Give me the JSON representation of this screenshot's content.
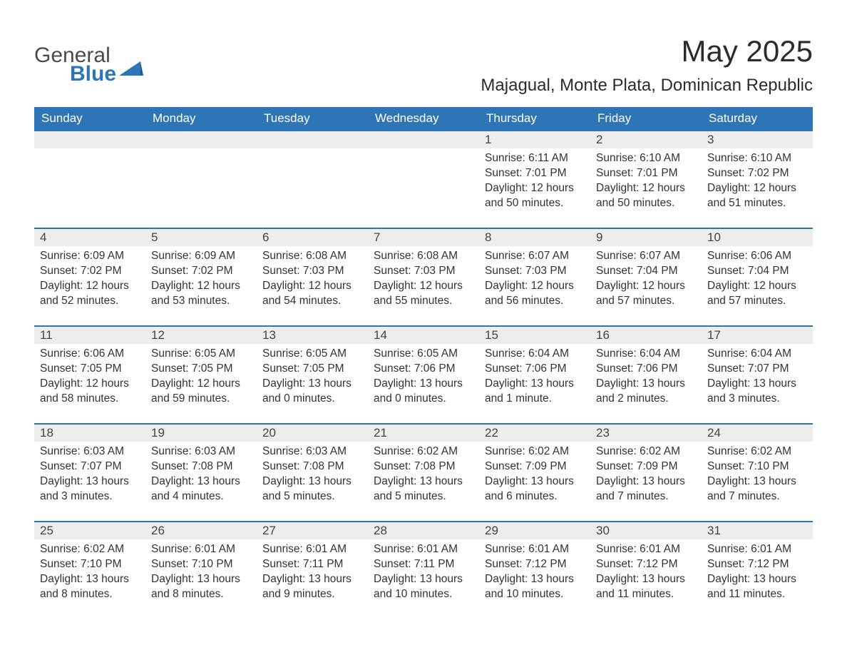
{
  "logo": {
    "word1": "General",
    "word2": "Blue",
    "icon_color": "#2e75b6"
  },
  "title": "May 2025",
  "location": "Majagual, Monte Plata, Dominican Republic",
  "header_bg": "#2e75b6",
  "header_fg": "#ffffff",
  "daynum_bg": "#ededed",
  "rule_color": "#2e75b6",
  "text_color": "#333333",
  "weekdays": [
    "Sunday",
    "Monday",
    "Tuesday",
    "Wednesday",
    "Thursday",
    "Friday",
    "Saturday"
  ],
  "days": [
    null,
    null,
    null,
    null,
    {
      "n": "1",
      "sr": "6:11 AM",
      "ss": "7:01 PM",
      "dl": "12 hours and 50 minutes."
    },
    {
      "n": "2",
      "sr": "6:10 AM",
      "ss": "7:01 PM",
      "dl": "12 hours and 50 minutes."
    },
    {
      "n": "3",
      "sr": "6:10 AM",
      "ss": "7:02 PM",
      "dl": "12 hours and 51 minutes."
    },
    {
      "n": "4",
      "sr": "6:09 AM",
      "ss": "7:02 PM",
      "dl": "12 hours and 52 minutes."
    },
    {
      "n": "5",
      "sr": "6:09 AM",
      "ss": "7:02 PM",
      "dl": "12 hours and 53 minutes."
    },
    {
      "n": "6",
      "sr": "6:08 AM",
      "ss": "7:03 PM",
      "dl": "12 hours and 54 minutes."
    },
    {
      "n": "7",
      "sr": "6:08 AM",
      "ss": "7:03 PM",
      "dl": "12 hours and 55 minutes."
    },
    {
      "n": "8",
      "sr": "6:07 AM",
      "ss": "7:03 PM",
      "dl": "12 hours and 56 minutes."
    },
    {
      "n": "9",
      "sr": "6:07 AM",
      "ss": "7:04 PM",
      "dl": "12 hours and 57 minutes."
    },
    {
      "n": "10",
      "sr": "6:06 AM",
      "ss": "7:04 PM",
      "dl": "12 hours and 57 minutes."
    },
    {
      "n": "11",
      "sr": "6:06 AM",
      "ss": "7:05 PM",
      "dl": "12 hours and 58 minutes."
    },
    {
      "n": "12",
      "sr": "6:05 AM",
      "ss": "7:05 PM",
      "dl": "12 hours and 59 minutes."
    },
    {
      "n": "13",
      "sr": "6:05 AM",
      "ss": "7:05 PM",
      "dl": "13 hours and 0 minutes."
    },
    {
      "n": "14",
      "sr": "6:05 AM",
      "ss": "7:06 PM",
      "dl": "13 hours and 0 minutes."
    },
    {
      "n": "15",
      "sr": "6:04 AM",
      "ss": "7:06 PM",
      "dl": "13 hours and 1 minute."
    },
    {
      "n": "16",
      "sr": "6:04 AM",
      "ss": "7:06 PM",
      "dl": "13 hours and 2 minutes."
    },
    {
      "n": "17",
      "sr": "6:04 AM",
      "ss": "7:07 PM",
      "dl": "13 hours and 3 minutes."
    },
    {
      "n": "18",
      "sr": "6:03 AM",
      "ss": "7:07 PM",
      "dl": "13 hours and 3 minutes."
    },
    {
      "n": "19",
      "sr": "6:03 AM",
      "ss": "7:08 PM",
      "dl": "13 hours and 4 minutes."
    },
    {
      "n": "20",
      "sr": "6:03 AM",
      "ss": "7:08 PM",
      "dl": "13 hours and 5 minutes."
    },
    {
      "n": "21",
      "sr": "6:02 AM",
      "ss": "7:08 PM",
      "dl": "13 hours and 5 minutes."
    },
    {
      "n": "22",
      "sr": "6:02 AM",
      "ss": "7:09 PM",
      "dl": "13 hours and 6 minutes."
    },
    {
      "n": "23",
      "sr": "6:02 AM",
      "ss": "7:09 PM",
      "dl": "13 hours and 7 minutes."
    },
    {
      "n": "24",
      "sr": "6:02 AM",
      "ss": "7:10 PM",
      "dl": "13 hours and 7 minutes."
    },
    {
      "n": "25",
      "sr": "6:02 AM",
      "ss": "7:10 PM",
      "dl": "13 hours and 8 minutes."
    },
    {
      "n": "26",
      "sr": "6:01 AM",
      "ss": "7:10 PM",
      "dl": "13 hours and 8 minutes."
    },
    {
      "n": "27",
      "sr": "6:01 AM",
      "ss": "7:11 PM",
      "dl": "13 hours and 9 minutes."
    },
    {
      "n": "28",
      "sr": "6:01 AM",
      "ss": "7:11 PM",
      "dl": "13 hours and 10 minutes."
    },
    {
      "n": "29",
      "sr": "6:01 AM",
      "ss": "7:12 PM",
      "dl": "13 hours and 10 minutes."
    },
    {
      "n": "30",
      "sr": "6:01 AM",
      "ss": "7:12 PM",
      "dl": "13 hours and 11 minutes."
    },
    {
      "n": "31",
      "sr": "6:01 AM",
      "ss": "7:12 PM",
      "dl": "13 hours and 11 minutes."
    }
  ],
  "labels": {
    "sunrise": "Sunrise:",
    "sunset": "Sunset:",
    "daylight": "Daylight:"
  }
}
